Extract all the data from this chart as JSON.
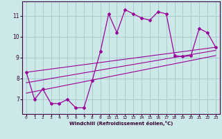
{
  "x": [
    0,
    1,
    2,
    3,
    4,
    5,
    6,
    7,
    8,
    9,
    10,
    11,
    12,
    13,
    14,
    15,
    16,
    17,
    18,
    19,
    20,
    21,
    22,
    23
  ],
  "y_main": [
    8.3,
    7.0,
    7.5,
    6.8,
    6.8,
    7.0,
    6.6,
    6.6,
    7.9,
    9.3,
    11.1,
    10.2,
    11.3,
    11.1,
    10.9,
    10.8,
    11.2,
    11.1,
    9.1,
    9.05,
    9.1,
    10.4,
    10.2,
    9.5
  ],
  "background_color": "#cce8e8",
  "line_color": "#990099",
  "grid_color": "#aacccc",
  "xlabel": "Windchill (Refroidissement éolien,°C)",
  "yticks": [
    7,
    8,
    9,
    10,
    11
  ],
  "xticks": [
    0,
    1,
    2,
    3,
    4,
    5,
    6,
    7,
    8,
    9,
    10,
    11,
    12,
    13,
    14,
    15,
    16,
    17,
    18,
    19,
    20,
    21,
    22,
    23
  ],
  "ylim": [
    6.3,
    11.7
  ],
  "xlim": [
    -0.5,
    23.5
  ],
  "trend_lines": [
    {
      "x0": 0,
      "y0": 8.3,
      "x1": 23,
      "y1": 9.5
    },
    {
      "x0": 0,
      "y0": 7.8,
      "x1": 23,
      "y1": 9.35
    },
    {
      "x0": 0,
      "y0": 7.3,
      "x1": 23,
      "y1": 9.1
    }
  ]
}
